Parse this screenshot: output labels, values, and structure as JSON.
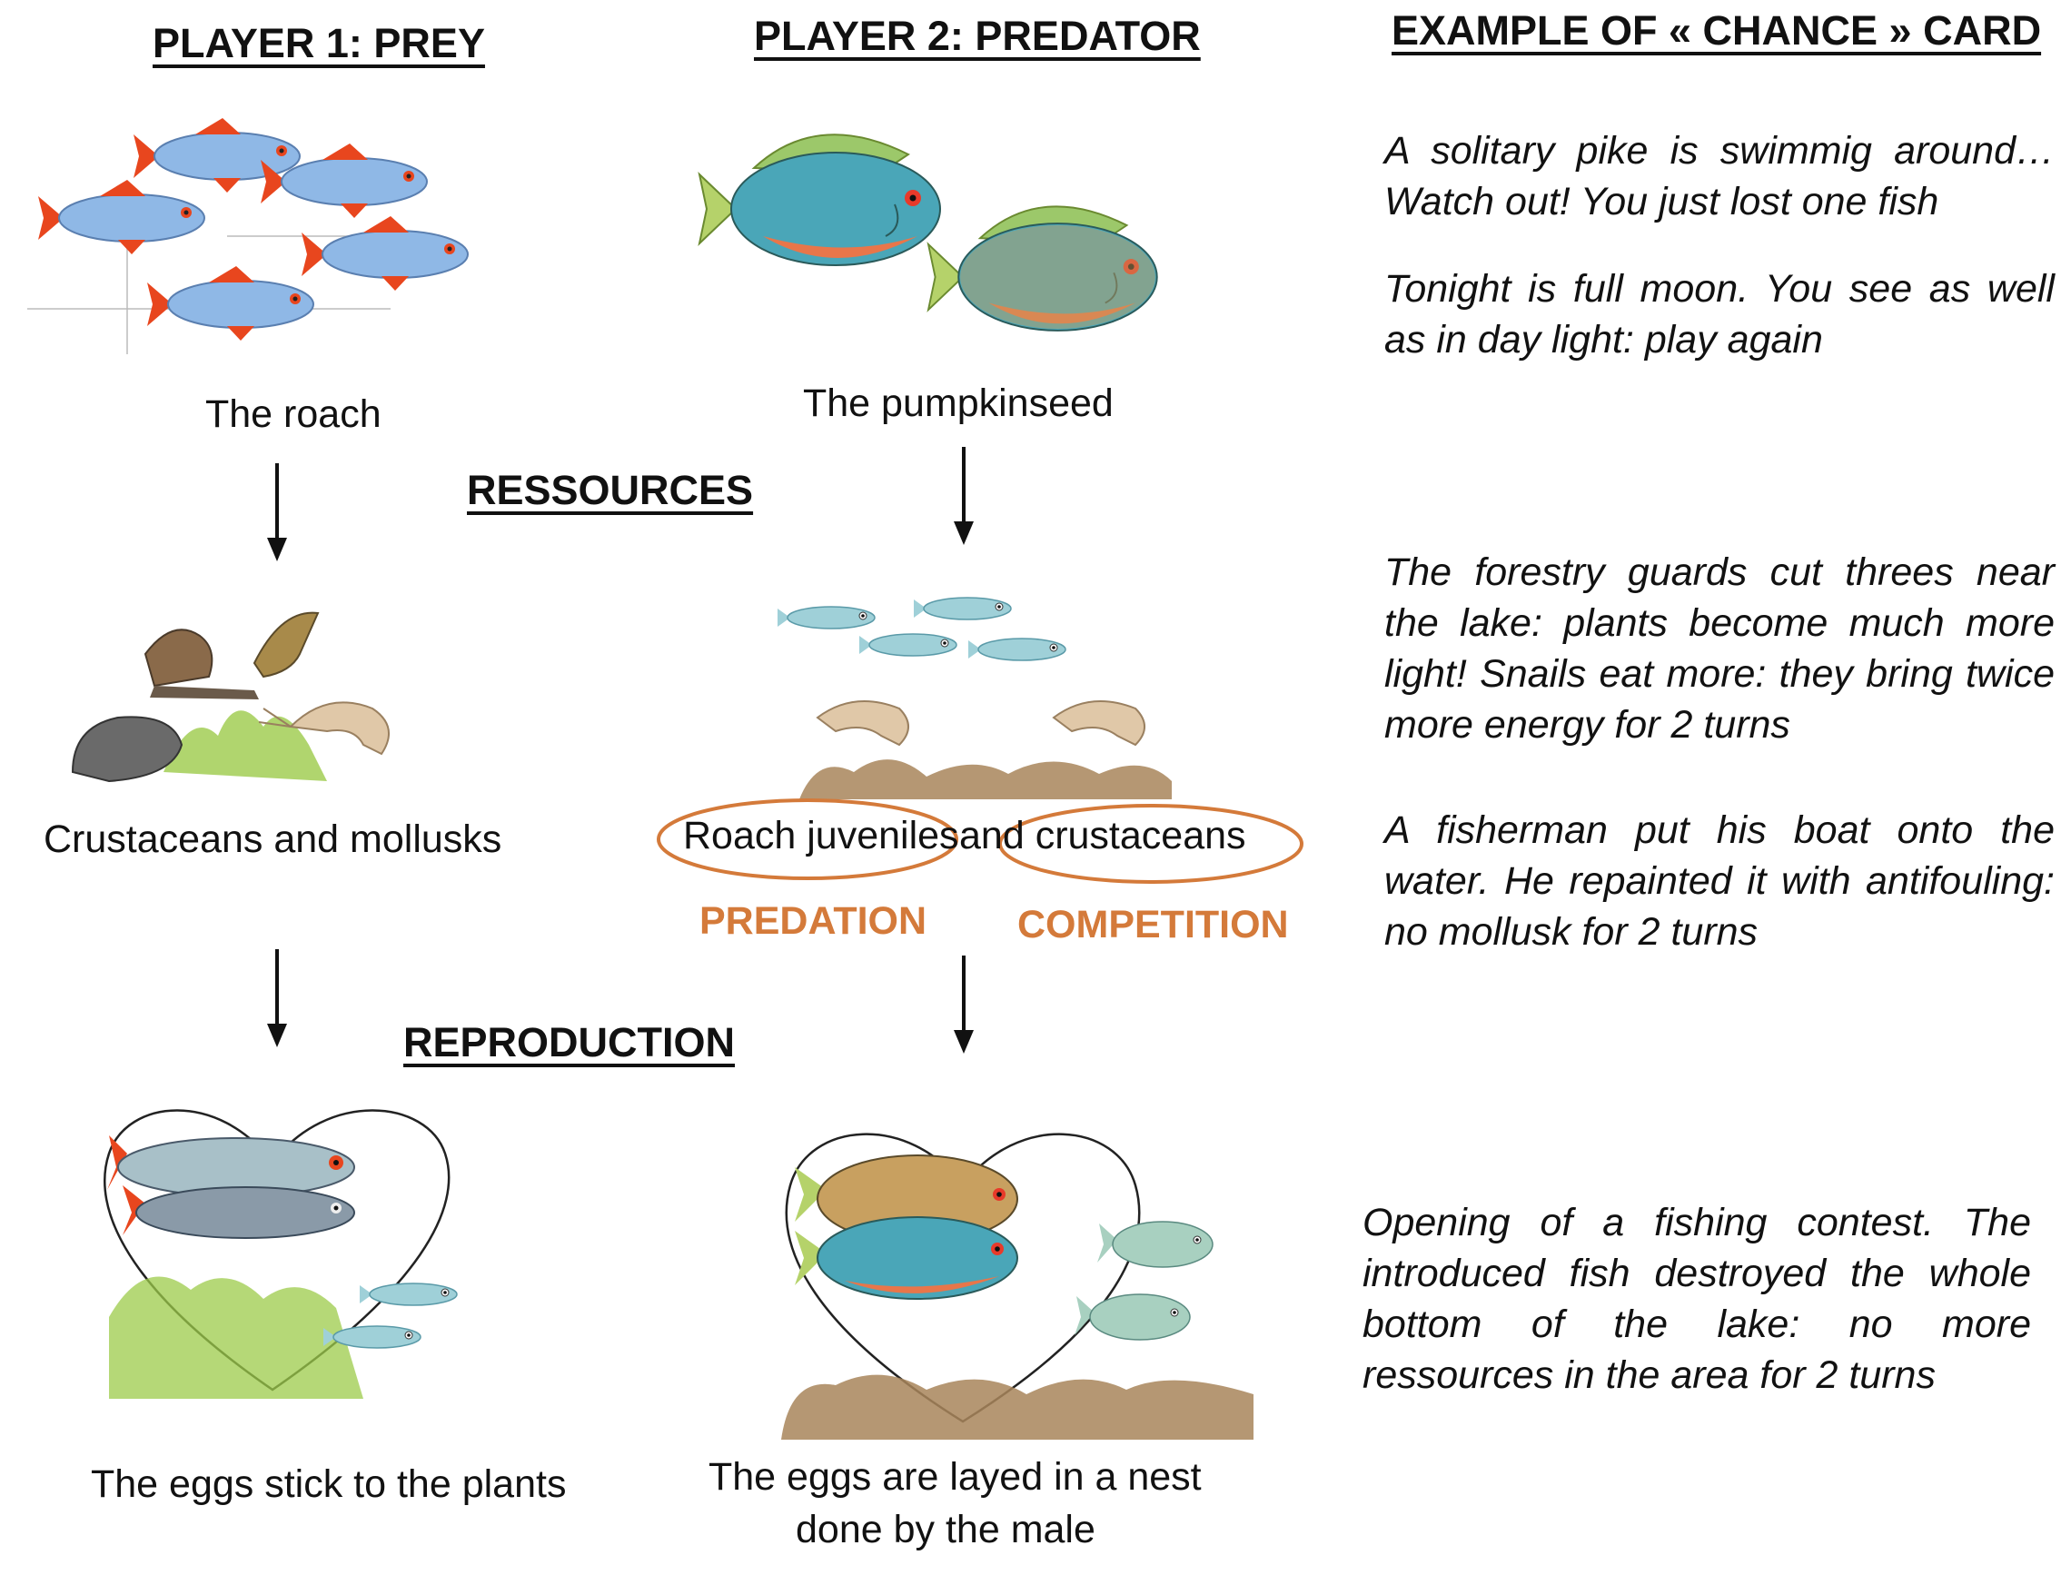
{
  "player1": {
    "heading": "PLAYER 1: PREY",
    "species": "The roach",
    "resources": "Crustaceans and mollusks",
    "reproduction": "The eggs stick to the plants"
  },
  "player2": {
    "heading": "PLAYER 2: PREDATOR",
    "species": "The pumpkinseed",
    "resources_a": "Roach juveniles",
    "resources_b": "and crustaceans",
    "predation": "PREDATION",
    "competition": "COMPETITION",
    "reproduction_line1": "The eggs are layed in a nest",
    "reproduction_line2": "done by the male"
  },
  "sections": {
    "resources": "RESSOURCES",
    "reproduction": "REPRODUCTION"
  },
  "chance": {
    "heading": "EXAMPLE OF « CHANCE » CARD",
    "cards": [
      "A solitary pike is swimmig around… Watch out! You just lost one fish",
      "Tonight is full moon. You see as well as in day light: play again",
      "The forestry guards cut threes near the lake: plants become much more light! Snails eat more: they bring twice more energy for 2 turns",
      "A fisherman put his boat onto the water. He repainted it with antifouling: no mollusk for 2 turns",
      "Opening of a fishing contest. The introduced fish destroyed the whole bottom of the lake: no more ressources in the area for 2 turns"
    ]
  },
  "colors": {
    "accent": "#d47a3a",
    "roach_body": "#8fb8e6",
    "roach_fin": "#e8461e",
    "pumpkinseed_body": "#4aa6b8",
    "pumpkinseed_belly": "#e8764a",
    "plants": "#9ccb4a",
    "sediment": "#a8855a"
  }
}
